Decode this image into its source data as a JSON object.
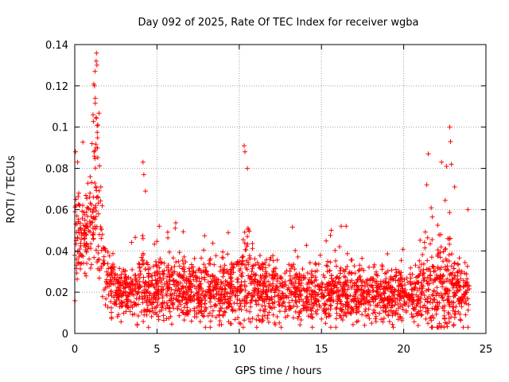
{
  "chart_data": {
    "type": "scatter",
    "title": "Day 092 of 2025, Rate Of TEC Index for receiver wgba",
    "xlabel": "GPS time / hours",
    "ylabel": "ROTI / TECUs",
    "xlim": [
      0,
      25
    ],
    "ylim": [
      0,
      0.14
    ],
    "xticks": [
      0,
      5,
      10,
      15,
      20,
      25
    ],
    "xtick_labels": [
      "0",
      "5",
      "10",
      "15",
      "20",
      "25"
    ],
    "yticks": [
      0,
      0.02,
      0.04,
      0.06,
      0.08,
      0.1,
      0.12,
      0.14
    ],
    "ytick_labels": [
      "0",
      "0.02",
      "0.04",
      "0.06",
      "0.08",
      "0.1",
      "0.12",
      "0.14"
    ],
    "grid": true,
    "marker": "plus",
    "color": "#ff0000",
    "series": [
      {
        "name": "ROTI",
        "envelope_hours": [
          0,
          0.3,
          0.6,
          0.9,
          1.1,
          1.3,
          1.5,
          1.8,
          2.5,
          3.5,
          4.2,
          5,
          6,
          7,
          8,
          9,
          10,
          10.4,
          11,
          12,
          13,
          14,
          15,
          16,
          17,
          18,
          19,
          19.5,
          20,
          21,
          21.5,
          22,
          22.5,
          22.8,
          23.2,
          23.6,
          24
        ],
        "typical_roti": [
          0.045,
          0.05,
          0.045,
          0.05,
          0.06,
          0.07,
          0.05,
          0.03,
          0.02,
          0.02,
          0.022,
          0.022,
          0.022,
          0.02,
          0.02,
          0.02,
          0.022,
          0.03,
          0.022,
          0.02,
          0.02,
          0.018,
          0.018,
          0.02,
          0.018,
          0.018,
          0.018,
          0.02,
          0.018,
          0.02,
          0.022,
          0.022,
          0.025,
          0.022,
          0.02,
          0.018,
          0.018
        ],
        "spread_roti": [
          0.02,
          0.02,
          0.02,
          0.02,
          0.03,
          0.04,
          0.03,
          0.015,
          0.012,
          0.012,
          0.015,
          0.014,
          0.014,
          0.013,
          0.013,
          0.013,
          0.015,
          0.025,
          0.016,
          0.013,
          0.012,
          0.012,
          0.012,
          0.014,
          0.012,
          0.012,
          0.012,
          0.014,
          0.012,
          0.014,
          0.018,
          0.02,
          0.022,
          0.02,
          0.014,
          0.012,
          0.012
        ],
        "peaks": [
          {
            "x": 1.3,
            "y": 0.132
          },
          {
            "x": 1.35,
            "y": 0.13
          },
          {
            "x": 1.2,
            "y": 0.12
          },
          {
            "x": 1.25,
            "y": 0.114
          },
          {
            "x": 1.4,
            "y": 0.101
          },
          {
            "x": 1.05,
            "y": 0.092
          },
          {
            "x": 0.05,
            "y": 0.088
          },
          {
            "x": 4.15,
            "y": 0.083
          },
          {
            "x": 4.2,
            "y": 0.077
          },
          {
            "x": 4.3,
            "y": 0.069
          },
          {
            "x": 10.3,
            "y": 0.091
          },
          {
            "x": 10.35,
            "y": 0.088
          },
          {
            "x": 10.5,
            "y": 0.08
          },
          {
            "x": 21.5,
            "y": 0.087
          },
          {
            "x": 22.8,
            "y": 0.1
          },
          {
            "x": 22.85,
            "y": 0.093
          },
          {
            "x": 22.3,
            "y": 0.083
          },
          {
            "x": 22.6,
            "y": 0.081
          },
          {
            "x": 22.9,
            "y": 0.082
          },
          {
            "x": 21.4,
            "y": 0.072
          },
          {
            "x": 23.1,
            "y": 0.071
          },
          {
            "x": 23.9,
            "y": 0.06
          },
          {
            "x": 16.2,
            "y": 0.052
          },
          {
            "x": 16.5,
            "y": 0.052
          },
          {
            "x": 15.6,
            "y": 0.05
          }
        ]
      }
    ]
  }
}
